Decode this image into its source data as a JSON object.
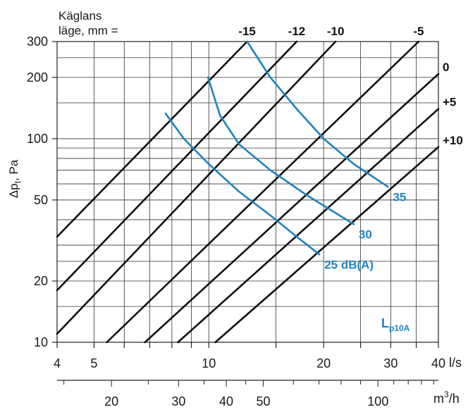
{
  "chart_data": {
    "type": "line",
    "header": [
      "Käglans",
      "läge, mm ="
    ],
    "ylabel": "Δp",
    "ylabel_sub": "t",
    "ylabel_unit": ", Pa",
    "x_unit": "l/s",
    "x2_unit_base": "m",
    "x2_unit_exp": "3",
    "x2_unit_tail": "/h",
    "y_scale": "log",
    "x_scale": "log",
    "ylim": [
      10,
      300
    ],
    "xlim": [
      4,
      40
    ],
    "x2lim": [
      14.4,
      144
    ],
    "y_ticks": [
      10,
      20,
      50,
      100,
      200,
      300
    ],
    "y_tick_labels": [
      "10",
      "20",
      "50",
      "100",
      "200",
      "300"
    ],
    "y_grid": [
      10,
      15,
      20,
      25,
      30,
      40,
      50,
      60,
      70,
      80,
      90,
      100,
      150,
      200,
      250,
      300
    ],
    "x_ticks": [
      4,
      5,
      10,
      20,
      30,
      40
    ],
    "x_tick_labels": [
      "4",
      "5",
      "10",
      "20",
      "30",
      "40"
    ],
    "x_grid": [
      4,
      5,
      6,
      7,
      8,
      9,
      10,
      15,
      20,
      25,
      30,
      35,
      40
    ],
    "x2_ticks": [
      20,
      30,
      40,
      50,
      100
    ],
    "x2_tick_labels": [
      "20",
      "30",
      "40",
      "50",
      "100"
    ],
    "x2_minor": [
      15,
      20,
      25,
      30,
      35,
      40,
      45,
      50,
      60,
      70,
      80,
      90,
      100,
      110,
      120,
      130,
      140
    ],
    "grid": true,
    "line_color": "#111111",
    "noise_color": "#1f82c0",
    "series": [
      {
        "name": "-15",
        "points": [
          [
            4,
            33
          ],
          [
            12.6,
            300
          ]
        ]
      },
      {
        "name": "-12",
        "points": [
          [
            4,
            18
          ],
          [
            17,
            300
          ]
        ]
      },
      {
        "name": "-10",
        "points": [
          [
            4,
            11
          ],
          [
            21.5,
            300
          ]
        ]
      },
      {
        "name": "-5",
        "points": [
          [
            5.4,
            10
          ],
          [
            35.5,
            300
          ]
        ]
      },
      {
        "name": "0",
        "points": [
          [
            6.8,
            10
          ],
          [
            40,
            208
          ]
        ]
      },
      {
        "name": "+5",
        "points": [
          [
            8.3,
            10
          ],
          [
            40,
            140
          ]
        ]
      },
      {
        "name": "+10",
        "points": [
          [
            10.4,
            10
          ],
          [
            40,
            91
          ]
        ]
      }
    ],
    "noise_curves": [
      {
        "name": "35",
        "points": [
          [
            12.6,
            300
          ],
          [
            14.5,
            200
          ],
          [
            17,
            140
          ],
          [
            20,
            100
          ],
          [
            24,
            75
          ],
          [
            29.5,
            58
          ]
        ]
      },
      {
        "name": "30",
        "points": [
          [
            9.95,
            200
          ],
          [
            10.7,
            130
          ],
          [
            12,
            94
          ],
          [
            14.5,
            70
          ],
          [
            18,
            53
          ],
          [
            24,
            38
          ]
        ]
      },
      {
        "name": "25 dB(A)",
        "points": [
          [
            7.7,
            133
          ],
          [
            8.6,
            100
          ],
          [
            10,
            75
          ],
          [
            12,
            55
          ],
          [
            14.5,
            42
          ],
          [
            17,
            33
          ],
          [
            19.5,
            27
          ]
        ]
      }
    ],
    "noise_label_color": "#1f82c0",
    "annotation": {
      "main": "L",
      "sub": "p10A"
    }
  }
}
